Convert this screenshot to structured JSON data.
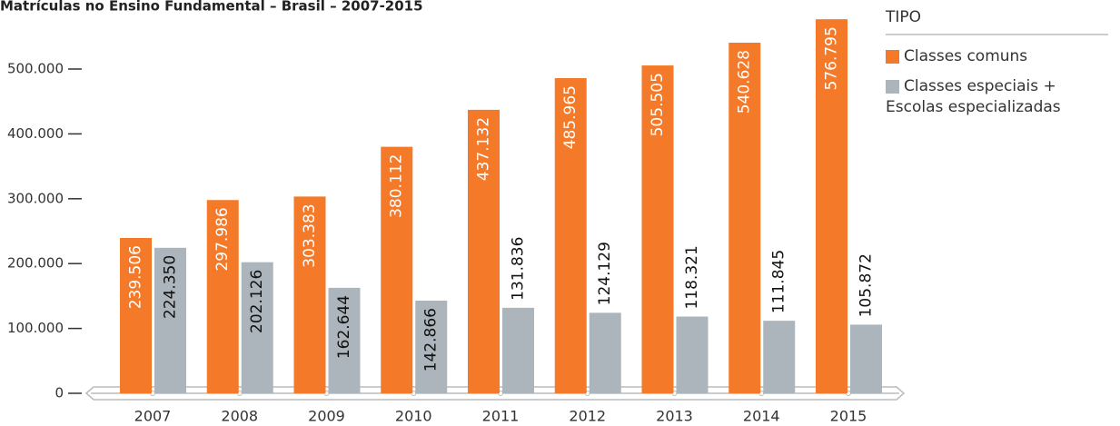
{
  "chart_data": {
    "type": "bar",
    "title": "Matrículas no Ensino Fundamental – Brasil – 2007-2015",
    "legend_title": "TIPO",
    "categories": [
      "2007",
      "2008",
      "2009",
      "2010",
      "2011",
      "2012",
      "2013",
      "2014",
      "2015"
    ],
    "series": [
      {
        "name": "Classes comuns",
        "color": "#f47a2a",
        "values": [
          239506,
          297986,
          303383,
          380112,
          437132,
          485965,
          505505,
          540628,
          576795
        ],
        "value_labels": [
          "239.506",
          "297.986",
          "303.383",
          "380.112",
          "437.132",
          "485.965",
          "505.505",
          "540.628",
          "576.795"
        ]
      },
      {
        "name": "Classes especiais + Escolas especializadas",
        "color": "#abb5bb",
        "values": [
          224350,
          202126,
          162644,
          142866,
          131836,
          124129,
          118321,
          111845,
          105872
        ],
        "value_labels": [
          "224.350",
          "202.126",
          "162.644",
          "142.866",
          "131.836",
          "124.129",
          "118.321",
          "111.845",
          "105.872"
        ]
      }
    ],
    "ylim": [
      0,
      500000
    ],
    "yticks": [
      0,
      {
        "value": 100000,
        "label": "100.000"
      },
      {
        "value": 200000,
        "label": "200.000"
      },
      {
        "value": 300000,
        "label": "300.000"
      },
      {
        "value": 400000,
        "label": "400.000"
      },
      {
        "value": 500000,
        "label": "500.000"
      }
    ],
    "legend_position": "top-right"
  }
}
